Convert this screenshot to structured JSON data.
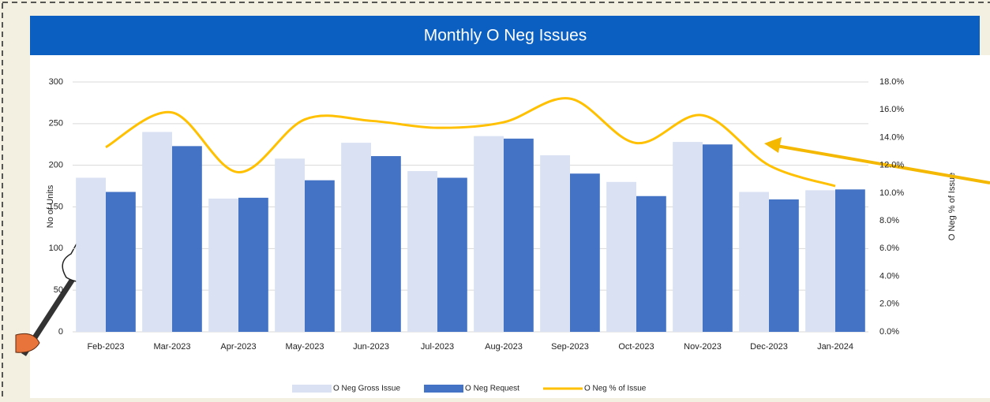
{
  "chart_data": {
    "type": "bar-line",
    "title": "Monthly O Neg Issues",
    "y_label": "No of Units",
    "y2_label": "O Neg % of Issue",
    "categories": [
      "Feb-2023",
      "Mar-2023",
      "Apr-2023",
      "May-2023",
      "Jun-2023",
      "Jul-2023",
      "Aug-2023",
      "Sep-2023",
      "Oct-2023",
      "Nov-2023",
      "Dec-2023",
      "Jan-2024"
    ],
    "series": [
      {
        "name": "O Neg Gross Issue",
        "type": "bar",
        "color": "#d9e1f2",
        "values": [
          185,
          240,
          160,
          208,
          227,
          193,
          235,
          212,
          180,
          228,
          168,
          170
        ]
      },
      {
        "name": "O Neg Request",
        "type": "bar",
        "color": "#4472c4",
        "values": [
          168,
          223,
          161,
          182,
          211,
          185,
          232,
          190,
          163,
          225,
          159,
          171
        ]
      },
      {
        "name": "O Neg % of Issue",
        "type": "line",
        "axis": "y2",
        "color": "#ffc000",
        "values": [
          13.3,
          15.8,
          11.5,
          15.3,
          15.2,
          14.7,
          15.1,
          16.8,
          13.6,
          15.6,
          12.0,
          10.5
        ]
      }
    ],
    "ylim": [
      0,
      300
    ],
    "yticks": [
      0,
      50,
      100,
      150,
      200,
      250,
      300
    ],
    "y2lim": [
      0,
      18
    ],
    "y2ticks": [
      {
        "value": 0,
        "label": "0.0%"
      },
      {
        "value": 2,
        "label": "2.0%"
      },
      {
        "value": 4,
        "label": "4.0%"
      },
      {
        "value": 6,
        "label": "6.0%"
      },
      {
        "value": 8,
        "label": "8.0%"
      },
      {
        "value": 10,
        "label": "10.0%"
      },
      {
        "value": 12,
        "label": "12.0%"
      },
      {
        "value": 14,
        "label": "14.0%"
      },
      {
        "value": 16,
        "label": "16.0%"
      },
      {
        "value": 18,
        "label": "18.0%"
      }
    ],
    "grid": true,
    "legend": "bottom"
  }
}
